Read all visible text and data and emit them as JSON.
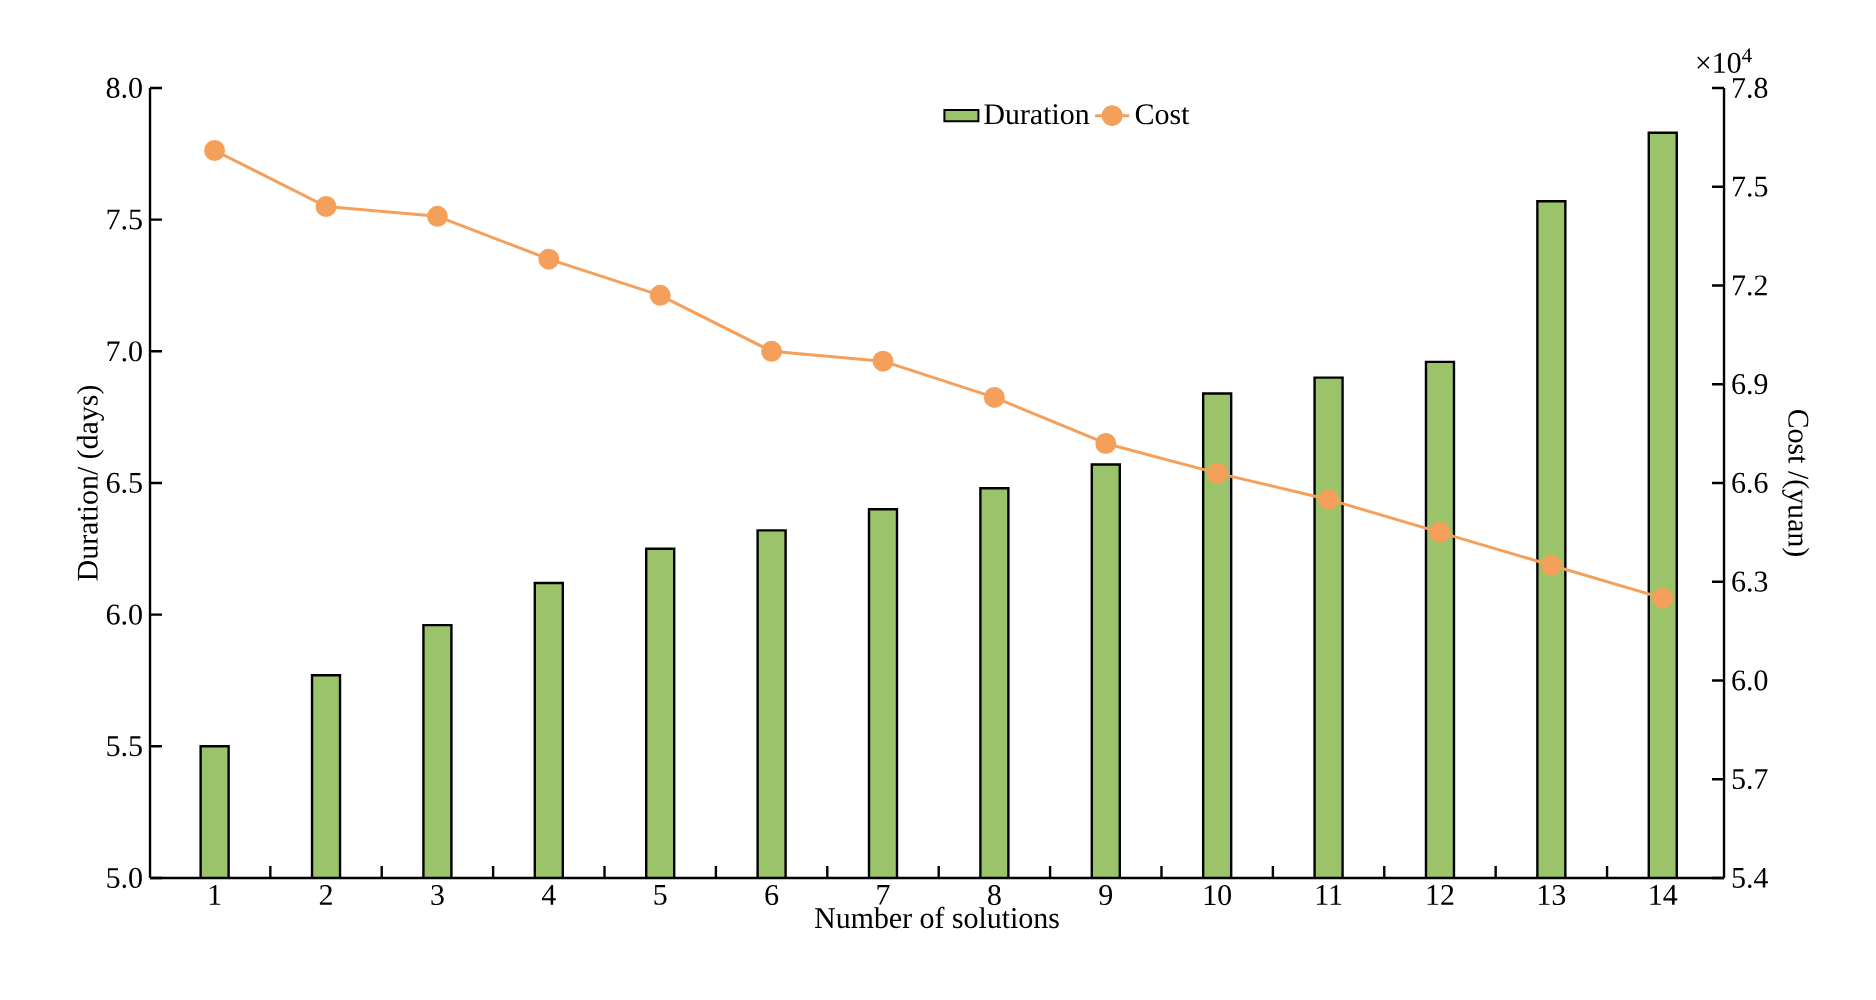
{
  "chart_data": {
    "type": "bar",
    "xlabel": "Number of solutions",
    "ylabel": "Duration/ (days)",
    "y2label": "Cost /(yuan)",
    "categories": [
      "1",
      "2",
      "3",
      "4",
      "5",
      "6",
      "7",
      "8",
      "9",
      "10",
      "11",
      "12",
      "13",
      "14"
    ],
    "series": [
      {
        "name": "Duration",
        "color": "#9bc46a",
        "values": [
          5.5,
          5.77,
          5.96,
          6.12,
          6.25,
          6.32,
          6.4,
          6.48,
          6.57,
          6.84,
          6.9,
          6.96,
          7.57,
          7.83
        ]
      },
      {
        "name": "Cost",
        "type": "line",
        "axis": "y2",
        "color": "#f4a05a",
        "marker": "circle",
        "values": [
          7.61,
          7.44,
          7.41,
          7.28,
          7.17,
          7.0,
          6.97,
          6.86,
          6.72,
          6.63,
          6.55,
          6.45,
          6.35,
          6.25
        ]
      }
    ],
    "ylim": [
      5.0,
      8.0
    ],
    "yticks": [
      {
        "value": 5.0,
        "label": "5.0"
      },
      {
        "value": 5.5,
        "label": "5.5"
      },
      {
        "value": 6.0,
        "label": "6.0"
      },
      {
        "value": 6.5,
        "label": "6.5"
      },
      {
        "value": 7.0,
        "label": "7.0"
      },
      {
        "value": 7.5,
        "label": "7.5"
      },
      {
        "value": 8.0,
        "label": "8.0"
      }
    ],
    "y2lim": [
      5.4,
      7.8
    ],
    "y2ticks": [
      5.4,
      5.7,
      {
        "value": 6.0,
        "label": "6.0"
      },
      6.3,
      6.6,
      6.9,
      7.2,
      7.5,
      7.8
    ],
    "annotations": [
      "×10$^{4}$"
    ],
    "legend": "top",
    "grid": false
  }
}
